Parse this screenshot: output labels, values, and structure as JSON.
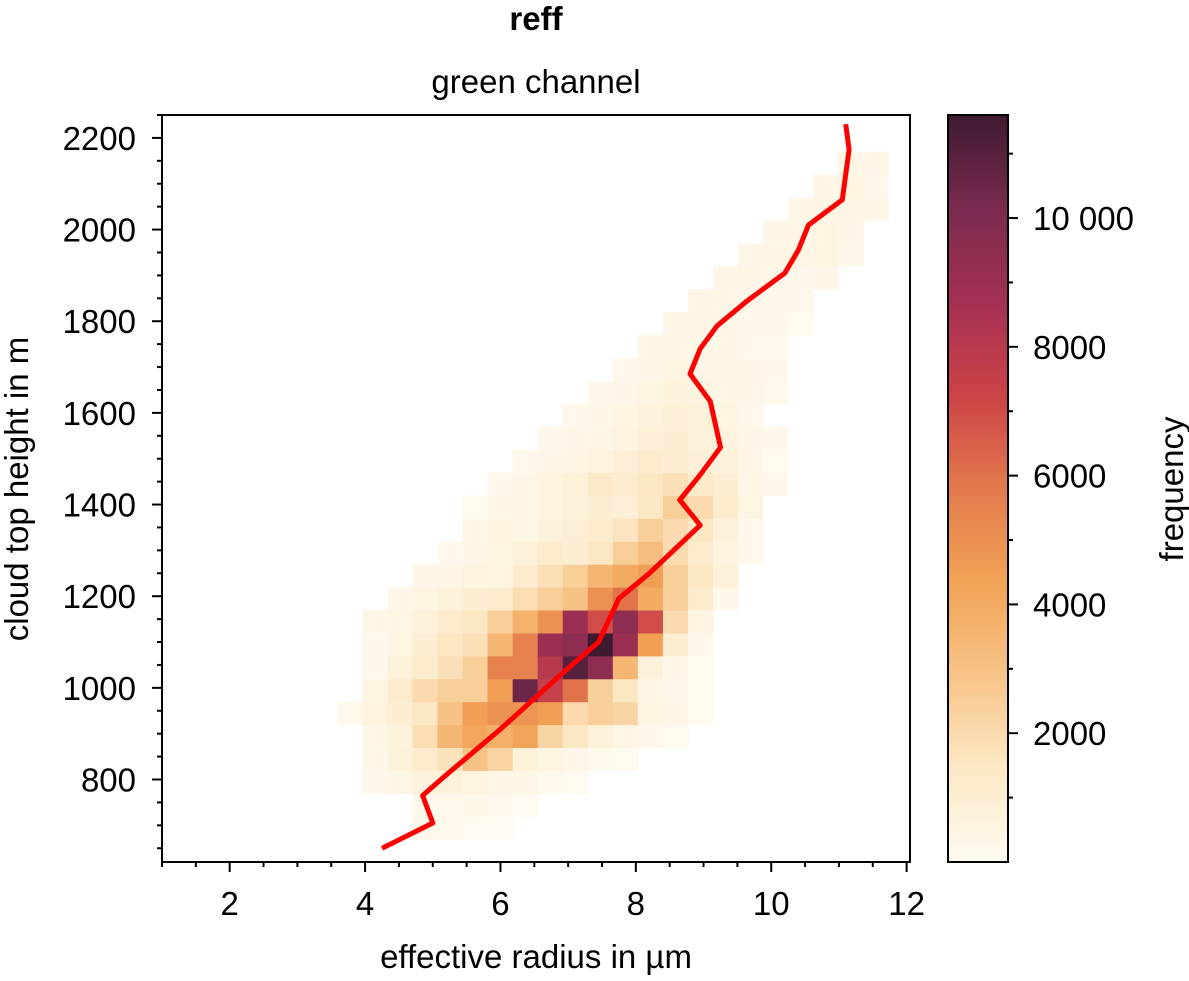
{
  "chart_data": {
    "type": "heatmap",
    "title": "reff",
    "subtitle": "green channel",
    "xlabel": "effective radius in µm",
    "ylabel": "cloud top height in m",
    "xlim": [
      1.0,
      12.05
    ],
    "ylim": [
      620,
      2250
    ],
    "xticks": [
      2,
      4,
      6,
      8,
      10,
      12
    ],
    "yticks": [
      800,
      1000,
      1200,
      1400,
      1600,
      1800,
      2000,
      2200
    ],
    "colorbar": {
      "label": "frequency",
      "range": [
        0,
        11600
      ],
      "ticks": [
        2000,
        4000,
        6000,
        8000,
        10000
      ],
      "tick_labels": [
        "2000",
        "4000",
        "6000",
        "8000",
        "10 000"
      ],
      "colormap": [
        "#fffbf1",
        "#fce8c5",
        "#f7c488",
        "#f2a356",
        "#e37a4d",
        "#cc4347",
        "#a43053",
        "#7a2a4f",
        "#3e1a31"
      ]
    },
    "bins": {
      "x_start": 1.0,
      "x_width": 0.37,
      "y_start": 620,
      "y_width": 50
    },
    "counts": [
      [
        0,
        0,
        0,
        0,
        0,
        0,
        0,
        0,
        0,
        0,
        0,
        0,
        0,
        0,
        0,
        0,
        0,
        0,
        0,
        0,
        0,
        0,
        0,
        0,
        0,
        0,
        0,
        0,
        0,
        0
      ],
      [
        0,
        0,
        0,
        0,
        0,
        0,
        0,
        0,
        0,
        0,
        200,
        150,
        80,
        40,
        0,
        0,
        0,
        0,
        0,
        0,
        0,
        0,
        0,
        0,
        0,
        0,
        0,
        0,
        0,
        0
      ],
      [
        0,
        0,
        0,
        0,
        0,
        0,
        0,
        0,
        0,
        0,
        120,
        150,
        250,
        120,
        50,
        0,
        0,
        0,
        0,
        0,
        0,
        0,
        0,
        0,
        0,
        0,
        0,
        0,
        0,
        0
      ],
      [
        0,
        0,
        0,
        0,
        0,
        0,
        0,
        0,
        200,
        400,
        700,
        800,
        550,
        350,
        300,
        150,
        80,
        0,
        0,
        0,
        0,
        0,
        0,
        0,
        0,
        0,
        0,
        0,
        0,
        0
      ],
      [
        0,
        0,
        0,
        0,
        0,
        0,
        0,
        0,
        300,
        800,
        1200,
        1700,
        3000,
        2300,
        800,
        500,
        300,
        150,
        100,
        0,
        0,
        0,
        0,
        0,
        0,
        0,
        0,
        0,
        0,
        0
      ],
      [
        0,
        0,
        0,
        0,
        0,
        0,
        0,
        0,
        400,
        700,
        1900,
        3500,
        4200,
        3800,
        4300,
        2200,
        1500,
        800,
        400,
        200,
        100,
        0,
        0,
        0,
        0,
        0,
        0,
        0,
        0,
        0
      ],
      [
        0,
        0,
        0,
        0,
        0,
        0,
        0,
        200,
        600,
        1000,
        1500,
        3000,
        4500,
        5000,
        4800,
        4500,
        2000,
        2500,
        2200,
        500,
        300,
        100,
        0,
        0,
        0,
        0,
        0,
        0,
        0,
        0
      ],
      [
        0,
        0,
        0,
        0,
        0,
        0,
        0,
        0,
        500,
        1200,
        2000,
        2500,
        2500,
        4500,
        10500,
        7500,
        6000,
        2500,
        1500,
        400,
        200,
        100,
        0,
        0,
        0,
        0,
        0,
        0,
        0,
        0
      ],
      [
        0,
        0,
        0,
        0,
        0,
        0,
        0,
        0,
        200,
        800,
        1200,
        1800,
        2500,
        5500,
        5500,
        8000,
        11000,
        9500,
        3500,
        800,
        300,
        100,
        0,
        0,
        0,
        0,
        0,
        0,
        0,
        0
      ],
      [
        0,
        0,
        0,
        0,
        0,
        0,
        0,
        0,
        200,
        500,
        1000,
        1500,
        1800,
        3500,
        5500,
        9000,
        9500,
        11600,
        9000,
        4500,
        1000,
        200,
        0,
        0,
        0,
        0,
        0,
        0,
        0,
        0
      ],
      [
        0,
        0,
        0,
        0,
        0,
        0,
        0,
        0,
        300,
        400,
        800,
        1200,
        1500,
        2500,
        3700,
        5000,
        9000,
        7000,
        9500,
        7000,
        2000,
        500,
        0,
        0,
        0,
        0,
        0,
        0,
        0,
        0
      ],
      [
        0,
        0,
        0,
        0,
        0,
        0,
        0,
        0,
        0,
        300,
        500,
        800,
        1000,
        1200,
        1900,
        2500,
        3000,
        5000,
        6000,
        4000,
        2500,
        1200,
        200,
        0,
        0,
        0,
        0,
        0,
        0,
        0
      ],
      [
        0,
        0,
        0,
        0,
        0,
        0,
        0,
        0,
        0,
        0,
        300,
        400,
        600,
        500,
        1200,
        1800,
        2500,
        3500,
        4000,
        4500,
        2500,
        1500,
        800,
        0,
        0,
        0,
        0,
        0,
        0,
        0
      ],
      [
        0,
        0,
        0,
        0,
        0,
        0,
        0,
        0,
        0,
        0,
        0,
        200,
        300,
        500,
        800,
        1200,
        1000,
        1500,
        2500,
        3200,
        2000,
        1200,
        600,
        200,
        0,
        0,
        0,
        0,
        0,
        0
      ],
      [
        0,
        0,
        0,
        0,
        0,
        0,
        0,
        0,
        0,
        0,
        0,
        0,
        300,
        600,
        400,
        800,
        900,
        1200,
        1600,
        2500,
        2000,
        1500,
        800,
        200,
        0,
        0,
        0,
        0,
        0,
        0
      ],
      [
        0,
        0,
        0,
        0,
        0,
        0,
        0,
        0,
        0,
        0,
        0,
        0,
        100,
        300,
        400,
        600,
        800,
        1000,
        900,
        1500,
        2500,
        2000,
        1200,
        500,
        0,
        0,
        0,
        0,
        0,
        0
      ],
      [
        0,
        0,
        0,
        0,
        0,
        0,
        0,
        0,
        0,
        0,
        0,
        0,
        0,
        200,
        300,
        600,
        800,
        1300,
        1100,
        1500,
        1800,
        1300,
        1000,
        400,
        200,
        0,
        0,
        0,
        0,
        0
      ],
      [
        0,
        0,
        0,
        0,
        0,
        0,
        0,
        0,
        0,
        0,
        0,
        0,
        0,
        0,
        200,
        300,
        400,
        600,
        900,
        1200,
        1000,
        900,
        800,
        300,
        100,
        0,
        0,
        0,
        0,
        0
      ],
      [
        0,
        0,
        0,
        0,
        0,
        0,
        0,
        0,
        0,
        0,
        0,
        0,
        0,
        0,
        0,
        200,
        300,
        400,
        600,
        900,
        1000,
        800,
        600,
        300,
        200,
        0,
        0,
        0,
        0,
        0
      ],
      [
        0,
        0,
        0,
        0,
        0,
        0,
        0,
        0,
        0,
        0,
        0,
        0,
        0,
        0,
        0,
        0,
        200,
        300,
        500,
        700,
        900,
        800,
        500,
        200,
        0,
        0,
        0,
        0,
        0,
        0
      ],
      [
        0,
        0,
        0,
        0,
        0,
        0,
        0,
        0,
        0,
        0,
        0,
        0,
        0,
        0,
        0,
        0,
        0,
        200,
        300,
        500,
        700,
        600,
        400,
        300,
        150,
        0,
        0,
        0,
        0,
        0
      ],
      [
        0,
        0,
        0,
        0,
        0,
        0,
        0,
        0,
        0,
        0,
        0,
        0,
        0,
        0,
        0,
        0,
        0,
        0,
        200,
        300,
        500,
        400,
        300,
        300,
        200,
        0,
        0,
        0,
        0,
        0
      ],
      [
        0,
        0,
        0,
        0,
        0,
        0,
        0,
        0,
        0,
        0,
        0,
        0,
        0,
        0,
        0,
        0,
        0,
        0,
        0,
        300,
        400,
        300,
        300,
        200,
        150,
        0,
        0,
        0,
        0,
        0
      ],
      [
        0,
        0,
        0,
        0,
        0,
        0,
        0,
        0,
        0,
        0,
        0,
        0,
        0,
        0,
        0,
        0,
        0,
        0,
        0,
        0,
        300,
        400,
        300,
        200,
        200,
        100,
        0,
        0,
        0,
        0
      ],
      [
        0,
        0,
        0,
        0,
        0,
        0,
        0,
        0,
        0,
        0,
        0,
        0,
        0,
        0,
        0,
        0,
        0,
        0,
        0,
        0,
        0,
        300,
        400,
        300,
        200,
        200,
        0,
        0,
        0,
        0
      ],
      [
        0,
        0,
        0,
        0,
        0,
        0,
        0,
        0,
        0,
        0,
        0,
        0,
        0,
        0,
        0,
        0,
        0,
        0,
        0,
        0,
        0,
        0,
        300,
        400,
        300,
        200,
        300,
        0,
        0,
        0
      ],
      [
        0,
        0,
        0,
        0,
        0,
        0,
        0,
        0,
        0,
        0,
        0,
        0,
        0,
        0,
        0,
        0,
        0,
        0,
        0,
        0,
        0,
        0,
        0,
        300,
        400,
        400,
        500,
        200,
        0,
        0
      ],
      [
        0,
        0,
        0,
        0,
        0,
        0,
        0,
        0,
        0,
        0,
        0,
        0,
        0,
        0,
        0,
        0,
        0,
        0,
        0,
        0,
        0,
        0,
        0,
        0,
        300,
        300,
        500,
        300,
        0,
        0
      ],
      [
        0,
        0,
        0,
        0,
        0,
        0,
        0,
        0,
        0,
        0,
        0,
        0,
        0,
        0,
        0,
        0,
        0,
        0,
        0,
        0,
        0,
        0,
        0,
        0,
        0,
        300,
        400,
        400,
        300,
        0
      ],
      [
        0,
        0,
        0,
        0,
        0,
        0,
        0,
        0,
        0,
        0,
        0,
        0,
        0,
        0,
        0,
        0,
        0,
        0,
        0,
        0,
        0,
        0,
        0,
        0,
        0,
        0,
        300,
        500,
        200,
        0
      ],
      [
        0,
        0,
        0,
        0,
        0,
        0,
        0,
        0,
        0,
        0,
        0,
        0,
        0,
        0,
        0,
        0,
        0,
        0,
        0,
        0,
        0,
        0,
        0,
        0,
        0,
        0,
        0,
        400,
        300,
        0
      ],
      [
        0,
        0,
        0,
        0,
        0,
        0,
        0,
        0,
        0,
        0,
        0,
        0,
        0,
        0,
        0,
        0,
        0,
        0,
        0,
        0,
        0,
        0,
        0,
        0,
        0,
        0,
        0,
        0,
        0,
        0
      ],
      [
        0,
        0,
        0,
        0,
        0,
        0,
        0,
        0,
        0,
        0,
        0,
        0,
        0,
        0,
        0,
        0,
        0,
        0,
        0,
        0,
        0,
        0,
        0,
        0,
        0,
        0,
        0,
        0,
        0,
        0
      ]
    ],
    "series": [
      {
        "color": "#ff0000",
        "x": [
          4.25,
          5.0,
          4.85,
          5.2,
          6.0,
          6.9,
          7.45,
          7.75,
          8.2,
          8.95,
          8.65,
          8.95,
          9.25,
          9.1,
          8.8,
          8.95,
          9.2,
          9.65,
          10.2,
          10.4,
          10.55,
          11.05,
          11.15,
          11.1
        ],
        "y": [
          650,
          705,
          765,
          810,
          910,
          1030,
          1100,
          1195,
          1250,
          1355,
          1410,
          1465,
          1525,
          1625,
          1685,
          1740,
          1790,
          1845,
          1905,
          1955,
          2010,
          2065,
          2175,
          2230
        ]
      }
    ]
  }
}
